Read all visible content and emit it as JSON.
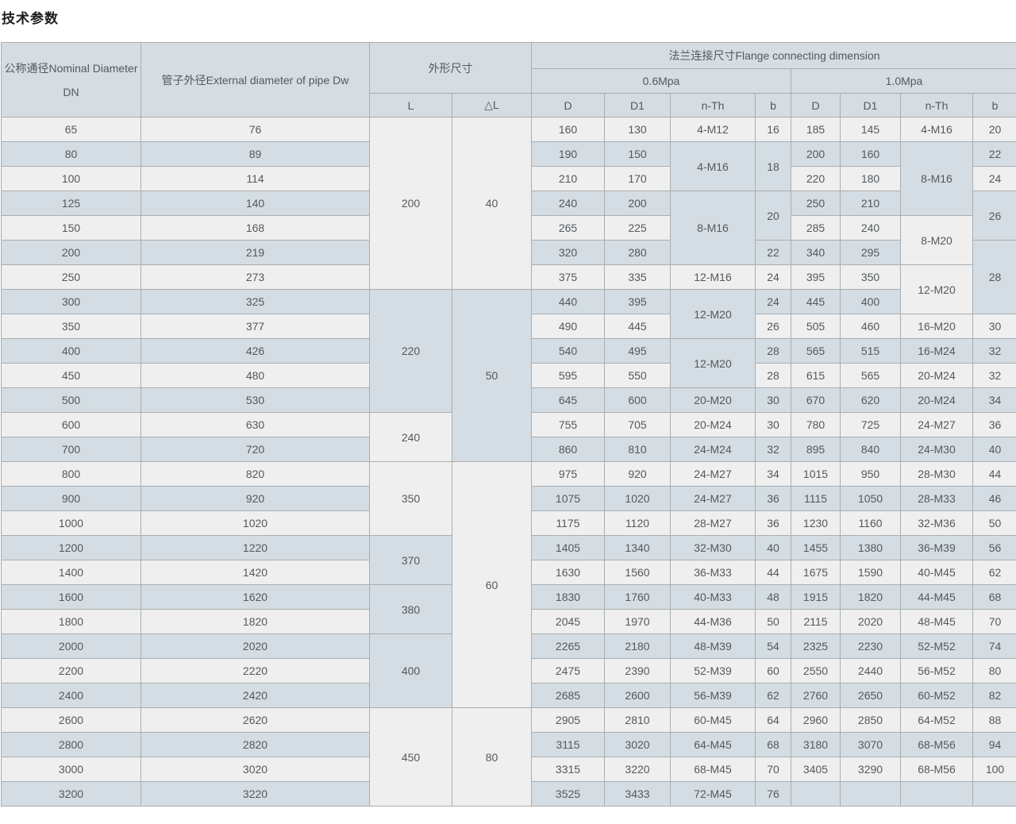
{
  "page_title": "技术参数",
  "colors": {
    "row_light": "#efefef",
    "row_blue": "#d4dde3",
    "header_bg": "#d5dce2",
    "border": "#a9aeb1",
    "text": "#54595d"
  },
  "table": {
    "header": {
      "dn": "公称通径Nominal Diameter DN",
      "dw": "管子外径External diameter of pipe Dw",
      "shape": "外形尺寸",
      "flange": "法兰连接尺寸Flange connecting dimension",
      "p06": "0.6Mpa",
      "p10": "1.0Mpa",
      "sub": [
        "L",
        "△L",
        "D",
        "D1",
        "n-Th",
        "b",
        "D",
        "D1",
        "n-Th",
        "b"
      ]
    },
    "rows": [
      [
        "65",
        "76",
        [
          "200",
          7
        ],
        [
          "40",
          7
        ],
        "160",
        "130",
        "4-M12",
        "16",
        "185",
        "145",
        "4-M16",
        "20"
      ],
      [
        "80",
        "89",
        "190",
        "150",
        [
          "4-M16",
          2
        ],
        [
          "18",
          2
        ],
        "200",
        "160",
        [
          "8-M16",
          3
        ],
        "22"
      ],
      [
        "100",
        "114",
        "210",
        "170",
        "220",
        "180",
        "24"
      ],
      [
        "125",
        "140",
        "240",
        "200",
        [
          "8-M16",
          3
        ],
        [
          "20",
          2
        ],
        "250",
        "210",
        [
          "26",
          2
        ]
      ],
      [
        "150",
        "168",
        "265",
        "225",
        "285",
        "240",
        [
          "8-M20",
          2
        ]
      ],
      [
        "200",
        "219",
        "320",
        "280",
        "22",
        "340",
        "295",
        [
          "28",
          3
        ]
      ],
      [
        "250",
        "273",
        "375",
        "335",
        "12-M16",
        "24",
        "395",
        "350",
        [
          "12-M20",
          2
        ]
      ],
      [
        "300",
        "325",
        [
          "220",
          5
        ],
        [
          "50",
          7
        ],
        "440",
        "395",
        [
          "12-M20",
          2
        ],
        "24",
        "445",
        "400"
      ],
      [
        "350",
        "377",
        "490",
        "445",
        "26",
        "505",
        "460",
        "16-M20",
        "30"
      ],
      [
        "400",
        "426",
        "540",
        "495",
        [
          "12-M20",
          2
        ],
        "28",
        "565",
        "515",
        "16-M24",
        "32"
      ],
      [
        "450",
        "480",
        "595",
        "550",
        "28",
        "615",
        "565",
        "20-M24",
        "32"
      ],
      [
        "500",
        "530",
        "645",
        "600",
        "20-M20",
        "30",
        "670",
        "620",
        "20-M24",
        "34"
      ],
      [
        "600",
        "630",
        [
          "240",
          2
        ],
        "755",
        "705",
        "20-M24",
        "30",
        "780",
        "725",
        "24-M27",
        "36"
      ],
      [
        "700",
        "720",
        "860",
        "810",
        "24-M24",
        "32",
        "895",
        "840",
        "24-M30",
        "40"
      ],
      [
        "800",
        "820",
        [
          "350",
          3
        ],
        [
          "60",
          10
        ],
        "975",
        "920",
        "24-M27",
        "34",
        "1015",
        "950",
        "28-M30",
        "44"
      ],
      [
        "900",
        "920",
        "1075",
        "1020",
        "24-M27",
        "36",
        "1115",
        "1050",
        "28-M33",
        "46"
      ],
      [
        "1000",
        "1020",
        "1175",
        "1120",
        "28-M27",
        "36",
        "1230",
        "1160",
        "32-M36",
        "50"
      ],
      [
        "1200",
        "1220",
        [
          "370",
          2
        ],
        "1405",
        "1340",
        "32-M30",
        "40",
        "1455",
        "1380",
        "36-M39",
        "56"
      ],
      [
        "1400",
        "1420",
        "1630",
        "1560",
        "36-M33",
        "44",
        "1675",
        "1590",
        "40-M45",
        "62"
      ],
      [
        "1600",
        "1620",
        [
          "380",
          2
        ],
        "1830",
        "1760",
        "40-M33",
        "48",
        "1915",
        "1820",
        "44-M45",
        "68"
      ],
      [
        "1800",
        "1820",
        "2045",
        "1970",
        "44-M36",
        "50",
        "2115",
        "2020",
        "48-M45",
        "70"
      ],
      [
        "2000",
        "2020",
        [
          "400",
          3
        ],
        "2265",
        "2180",
        "48-M39",
        "54",
        "2325",
        "2230",
        "52-M52",
        "74"
      ],
      [
        "2200",
        "2220",
        "2475",
        "2390",
        "52-M39",
        "60",
        "2550",
        "2440",
        "56-M52",
        "80"
      ],
      [
        "2400",
        "2420",
        "2685",
        "2600",
        "56-M39",
        "62",
        "2760",
        "2650",
        "60-M52",
        "82"
      ],
      [
        "2600",
        "2620",
        [
          "450",
          4
        ],
        [
          "80",
          4
        ],
        "2905",
        "2810",
        "60-M45",
        "64",
        "2960",
        "2850",
        "64-M52",
        "88"
      ],
      [
        "2800",
        "2820",
        "3115",
        "3020",
        "64-M45",
        "68",
        "3180",
        "3070",
        "68-M56",
        "94"
      ],
      [
        "3000",
        "3020",
        "3315",
        "3220",
        "68-M45",
        "70",
        "3405",
        "3290",
        "68-M56",
        "100"
      ],
      [
        "3200",
        "3220",
        "3525",
        "3433",
        "72-M45",
        "76",
        "",
        "",
        "",
        ""
      ]
    ]
  }
}
